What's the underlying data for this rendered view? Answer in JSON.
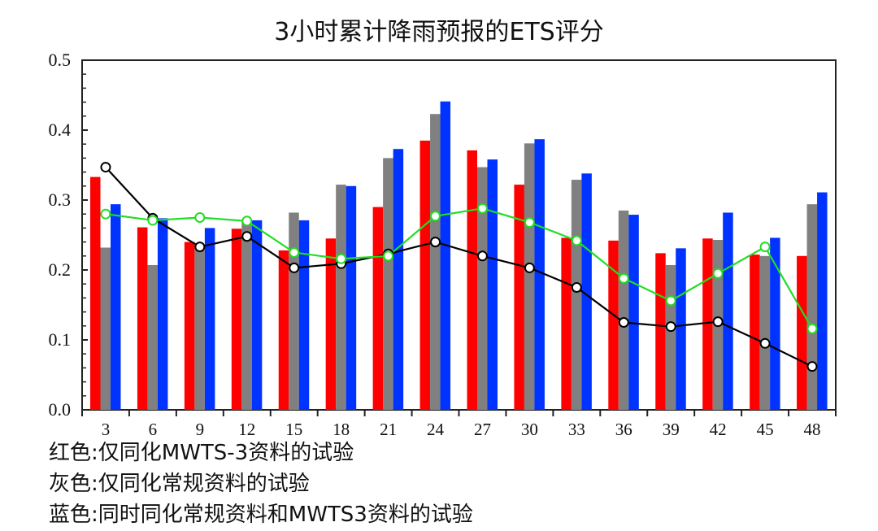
{
  "title": "3小时累计降雨预报的ETS评分",
  "legend_notes": [
    "红色:仅同化MWTS-3资料的试验",
    "灰色:仅同化常规资料的试验",
    "蓝色:同时同化常规资料和MWTS3资料的试验"
  ],
  "colors": {
    "red": "#ff0000",
    "gray": "#808080",
    "blue": "#0033ff",
    "black_line": "#000000",
    "green_line": "#22dd22"
  },
  "chart_data": {
    "type": "bar",
    "title": "3小时累计降雨预报的ETS评分",
    "xlabel": "",
    "ylabel": "",
    "ylim": [
      0.0,
      0.5
    ],
    "yticks": [
      "0.0",
      "0.1",
      "0.2",
      "0.3",
      "0.4",
      "0.5"
    ],
    "categories": [
      "3",
      "6",
      "9",
      "12",
      "15",
      "18",
      "21",
      "24",
      "27",
      "30",
      "33",
      "36",
      "39",
      "42",
      "45",
      "48"
    ],
    "series": [
      {
        "name": "仅同化MWTS-3资料的试验",
        "kind": "bar",
        "color": "#ff0000",
        "values": [
          0.333,
          0.261,
          0.24,
          0.259,
          0.228,
          0.245,
          0.29,
          0.385,
          0.371,
          0.322,
          0.246,
          0.242,
          0.224,
          0.245,
          0.222,
          0.22
        ]
      },
      {
        "name": "仅同化常规资料的试验",
        "kind": "bar",
        "color": "#808080",
        "values": [
          0.232,
          0.207,
          0.232,
          0.27,
          0.282,
          0.322,
          0.36,
          0.423,
          0.347,
          0.381,
          0.329,
          0.285,
          0.207,
          0.243,
          0.22,
          0.294
        ]
      },
      {
        "name": "同时同化常规资料和MWTS3资料的试验",
        "kind": "bar",
        "color": "#0033ff",
        "values": [
          0.294,
          0.274,
          0.26,
          0.271,
          0.271,
          0.32,
          0.373,
          0.441,
          0.358,
          0.387,
          0.338,
          0.279,
          0.231,
          0.282,
          0.246,
          0.311
        ]
      },
      {
        "name": "black line",
        "kind": "line",
        "color": "#000000",
        "values": [
          0.347,
          0.274,
          0.233,
          0.248,
          0.203,
          0.209,
          0.223,
          0.24,
          0.22,
          0.203,
          0.175,
          0.125,
          0.119,
          0.126,
          0.095,
          0.062
        ]
      },
      {
        "name": "green line",
        "kind": "line",
        "color": "#22dd22",
        "values": [
          0.28,
          0.271,
          0.275,
          0.27,
          0.225,
          0.216,
          0.22,
          0.277,
          0.288,
          0.268,
          0.242,
          0.188,
          0.156,
          0.195,
          0.233,
          0.116
        ]
      }
    ],
    "grid": false,
    "legend_position": "below chart (text notes)"
  }
}
